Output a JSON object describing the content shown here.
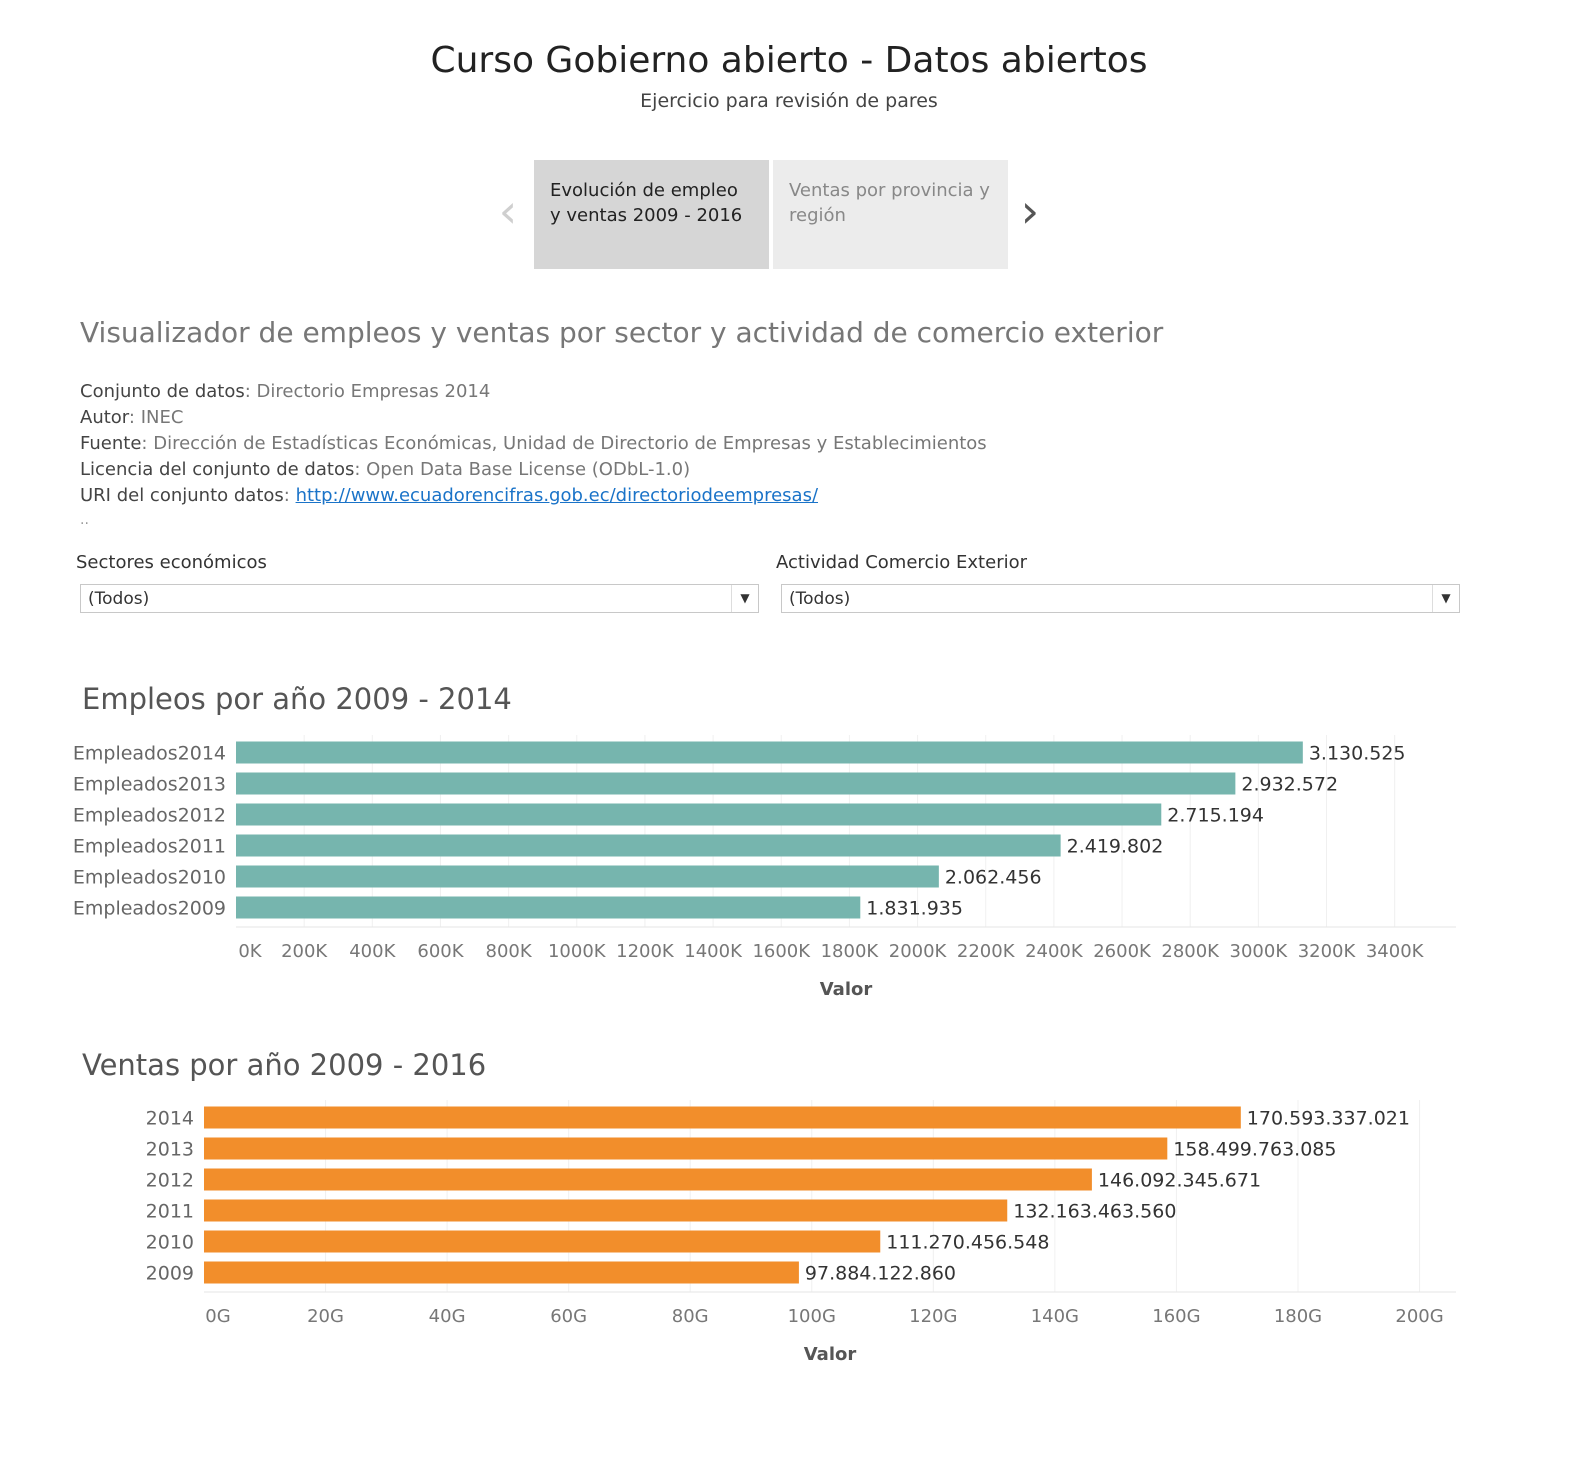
{
  "header": {
    "title": "Curso Gobierno abierto - Datos abiertos",
    "subtitle": "Ejercicio para revisión de pares"
  },
  "story_nav": {
    "prev_icon": "chevron-left-icon",
    "next_icon": "chevron-right-icon",
    "tabs": [
      {
        "label": "Evolución de empleo y ventas 2009 - 2016",
        "selected": true
      },
      {
        "label": "Ventas por provincia y región",
        "selected": false
      }
    ]
  },
  "visualizer": {
    "title": "Visualizador de empleos y ventas por sector y actividad de comercio exterior",
    "metadata": [
      {
        "key": "Conjunto de datos",
        "value": "Directorio Empresas 2014"
      },
      {
        "key": "Autor",
        "value": "INEC"
      },
      {
        "key": "Fuente",
        "value": "Dirección de Estadísticas Económicas, Unidad de Directorio de Empresas y Establecimientos"
      },
      {
        "key": "Licencia del conjunto de datos",
        "value": "Open Data Base License (ODbL-1.0)"
      },
      {
        "key": "URI del conjunto datos",
        "value": "http://www.ecuadorencifras.gob.ec/directoriodeempresas/"
      }
    ],
    "ellipsis": ".."
  },
  "filters": {
    "sectores": {
      "label": "Sectores económicos",
      "value": "(Todos)"
    },
    "actividad": {
      "label": "Actividad Comercio Exterior",
      "value": "(Todos)"
    }
  },
  "chart_data": [
    {
      "type": "bar",
      "orientation": "horizontal",
      "title": "Empleos por año 2009 - 2014",
      "xlabel": "Valor",
      "ylabel": "",
      "color": "#76b5ae",
      "categories": [
        "Empleados2014",
        "Empleados2013",
        "Empleados2012",
        "Empleados2011",
        "Empleados2010",
        "Empleados2009"
      ],
      "values": [
        3130525,
        2932572,
        2715194,
        2419802,
        2062456,
        1831935
      ],
      "value_labels": [
        "3.130.525",
        "2.932.572",
        "2.715.194",
        "2.419.802",
        "2.062.456",
        "1.831.935"
      ],
      "xticks": [
        0,
        200000,
        400000,
        600000,
        800000,
        1000000,
        1200000,
        1400000,
        1600000,
        1800000,
        2000000,
        2200000,
        2400000,
        2600000,
        2800000,
        3000000,
        3200000,
        3400000
      ],
      "xtick_labels": [
        "0K",
        "200K",
        "400K",
        "600K",
        "800K",
        "1000K",
        "1200K",
        "1400K",
        "1600K",
        "1800K",
        "2000K",
        "2200K",
        "2400K",
        "2600K",
        "2800K",
        "3000K",
        "3200K",
        "3400K"
      ],
      "xlim": [
        0,
        3580000
      ],
      "grid": true
    },
    {
      "type": "bar",
      "orientation": "horizontal",
      "title": "Ventas por año 2009 - 2016",
      "xlabel": "Valor",
      "ylabel": "",
      "color": "#f28e2b",
      "categories": [
        "2014",
        "2013",
        "2012",
        "2011",
        "2010",
        "2009"
      ],
      "values": [
        170593337021,
        158499763085,
        146092345671,
        132163463560,
        111270456548,
        97884122860
      ],
      "value_labels": [
        "170.593.337.021",
        "158.499.763.085",
        "146.092.345.671",
        "132.163.463.560",
        "111.270.456.548",
        "97.884.122.860"
      ],
      "xticks": [
        0,
        20000000000,
        40000000000,
        60000000000,
        80000000000,
        100000000000,
        120000000000,
        140000000000,
        160000000000,
        180000000000,
        200000000000
      ],
      "xtick_labels": [
        "0G",
        "20G",
        "40G",
        "60G",
        "80G",
        "100G",
        "120G",
        "140G",
        "160G",
        "180G",
        "200G"
      ],
      "xlim": [
        0,
        206000000000
      ],
      "grid": true
    }
  ]
}
